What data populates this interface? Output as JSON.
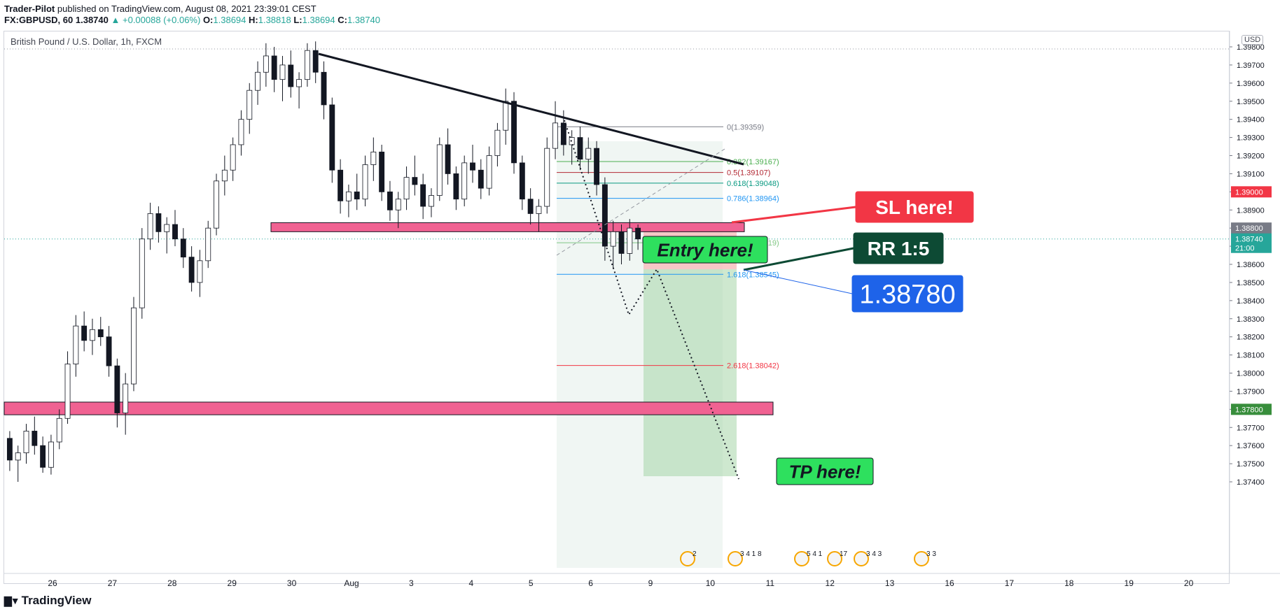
{
  "header": {
    "publisher": "Trader-Pilot",
    "published_text": "published on TradingView.com, August 08, 2021 23:39:01 CEST",
    "symbol": "FX:GBPUSD, 60",
    "last": "1.38740",
    "change": "+0.00088 (+0.06%)",
    "open_label": "O:",
    "open": "1.38694",
    "high_label": "H:",
    "high": "1.38818",
    "low_label": "L:",
    "low": "1.38694",
    "close_label": "C:",
    "close": "1.38740"
  },
  "symbol_label": "British Pound / U.S. Dollar, 1h, FXCM",
  "currency_label": "USD",
  "branding": "TradingView",
  "chart_data": {
    "type": "candlestick",
    "price_axis": {
      "range": [
        1.3736,
        1.3995
      ],
      "ticks": [
        "1.39800",
        "1.39700",
        "1.39600",
        "1.39500",
        "1.39400",
        "1.39300",
        "1.39200",
        "1.39100",
        "1.39000",
        "1.38900",
        "1.38800",
        "1.38700",
        "1.38600",
        "1.38500",
        "1.38400",
        "1.38300",
        "1.38200",
        "1.38100",
        "1.38000",
        "1.37900",
        "1.37800",
        "1.37700",
        "1.37600",
        "1.37500",
        "1.37400"
      ],
      "tick_values": [
        1.398,
        1.397,
        1.396,
        1.395,
        1.394,
        1.393,
        1.392,
        1.391,
        1.39,
        1.389,
        1.388,
        1.387,
        1.386,
        1.385,
        1.384,
        1.383,
        1.382,
        1.381,
        1.38,
        1.379,
        1.378,
        1.377,
        1.376,
        1.375,
        1.374
      ]
    },
    "time_axis": {
      "labels": [
        "26",
        "27",
        "28",
        "29",
        "30",
        "Aug",
        "3",
        "4",
        "5",
        "6",
        "9",
        "10",
        "11",
        "12",
        "13",
        "16",
        "17",
        "18",
        "19",
        "20"
      ]
    },
    "candles": [
      [
        1.3764,
        1.3768,
        1.3746,
        1.3752
      ],
      [
        1.3752,
        1.376,
        1.374,
        1.3756
      ],
      [
        1.3756,
        1.3772,
        1.375,
        1.3768
      ],
      [
        1.3768,
        1.3776,
        1.3755,
        1.376
      ],
      [
        1.376,
        1.3765,
        1.3745,
        1.3748
      ],
      [
        1.3748,
        1.3766,
        1.3744,
        1.3762
      ],
      [
        1.3762,
        1.378,
        1.3758,
        1.3775
      ],
      [
        1.3775,
        1.3812,
        1.3772,
        1.3805
      ],
      [
        1.3805,
        1.3832,
        1.3798,
        1.3826
      ],
      [
        1.3826,
        1.3834,
        1.3812,
        1.3818
      ],
      [
        1.3818,
        1.383,
        1.381,
        1.3824
      ],
      [
        1.3824,
        1.3831,
        1.3815,
        1.382
      ],
      [
        1.382,
        1.3826,
        1.3798,
        1.3804
      ],
      [
        1.3804,
        1.3808,
        1.377,
        1.3778
      ],
      [
        1.3778,
        1.38,
        1.3766,
        1.3794
      ],
      [
        1.3794,
        1.3842,
        1.379,
        1.3836
      ],
      [
        1.3836,
        1.388,
        1.383,
        1.3874
      ],
      [
        1.3874,
        1.3894,
        1.3868,
        1.3888
      ],
      [
        1.3888,
        1.3892,
        1.3872,
        1.3878
      ],
      [
        1.3878,
        1.3886,
        1.3866,
        1.3882
      ],
      [
        1.3882,
        1.389,
        1.387,
        1.3874
      ],
      [
        1.3874,
        1.388,
        1.3858,
        1.3864
      ],
      [
        1.3864,
        1.387,
        1.3845,
        1.385
      ],
      [
        1.385,
        1.3868,
        1.3842,
        1.3862
      ],
      [
        1.3862,
        1.3884,
        1.3858,
        1.388
      ],
      [
        1.388,
        1.391,
        1.3876,
        1.3906
      ],
      [
        1.3906,
        1.392,
        1.3898,
        1.3912
      ],
      [
        1.3912,
        1.393,
        1.3906,
        1.3926
      ],
      [
        1.3926,
        1.3945,
        1.392,
        1.394
      ],
      [
        1.394,
        1.396,
        1.3932,
        1.3956
      ],
      [
        1.3956,
        1.3972,
        1.3948,
        1.3966
      ],
      [
        1.3966,
        1.3982,
        1.3958,
        1.3975
      ],
      [
        1.3975,
        1.398,
        1.3955,
        1.3962
      ],
      [
        1.3962,
        1.3975,
        1.395,
        1.397
      ],
      [
        1.397,
        1.3978,
        1.3952,
        1.3958
      ],
      [
        1.3958,
        1.3966,
        1.3946,
        1.3962
      ],
      [
        1.3962,
        1.3982,
        1.3958,
        1.3978
      ],
      [
        1.3978,
        1.3983,
        1.396,
        1.3966
      ],
      [
        1.3966,
        1.3972,
        1.394,
        1.3948
      ],
      [
        1.3948,
        1.3952,
        1.3905,
        1.3912
      ],
      [
        1.3912,
        1.3918,
        1.3888,
        1.3895
      ],
      [
        1.3895,
        1.3904,
        1.3886,
        1.39
      ],
      [
        1.39,
        1.391,
        1.389,
        1.3896
      ],
      [
        1.3896,
        1.392,
        1.3892,
        1.3915
      ],
      [
        1.3915,
        1.393,
        1.3906,
        1.3922
      ],
      [
        1.3922,
        1.3926,
        1.3895,
        1.39
      ],
      [
        1.39,
        1.3906,
        1.3884,
        1.389
      ],
      [
        1.389,
        1.39,
        1.388,
        1.3896
      ],
      [
        1.3896,
        1.3914,
        1.389,
        1.3908
      ],
      [
        1.3908,
        1.392,
        1.3898,
        1.3904
      ],
      [
        1.3904,
        1.391,
        1.3885,
        1.3892
      ],
      [
        1.3892,
        1.3902,
        1.3886,
        1.3898
      ],
      [
        1.3898,
        1.393,
        1.3895,
        1.3926
      ],
      [
        1.3926,
        1.3935,
        1.3904,
        1.391
      ],
      [
        1.391,
        1.3914,
        1.389,
        1.3896
      ],
      [
        1.3896,
        1.392,
        1.3892,
        1.3916
      ],
      [
        1.3916,
        1.3926,
        1.3905,
        1.3912
      ],
      [
        1.3912,
        1.3918,
        1.3896,
        1.3902
      ],
      [
        1.3902,
        1.3925,
        1.3898,
        1.392
      ],
      [
        1.392,
        1.3938,
        1.3914,
        1.3934
      ],
      [
        1.3934,
        1.3957,
        1.3926,
        1.395
      ],
      [
        1.395,
        1.3955,
        1.391,
        1.3916
      ],
      [
        1.3916,
        1.392,
        1.389,
        1.3896
      ],
      [
        1.3896,
        1.3902,
        1.3882,
        1.3888
      ],
      [
        1.3888,
        1.3896,
        1.3878,
        1.3892
      ],
      [
        1.3892,
        1.393,
        1.3888,
        1.3924
      ],
      [
        1.3924,
        1.395,
        1.3918,
        1.3938
      ],
      [
        1.3938,
        1.3945,
        1.392,
        1.3926
      ],
      [
        1.3926,
        1.3934,
        1.3915,
        1.393
      ],
      [
        1.393,
        1.3936,
        1.3912,
        1.3918
      ],
      [
        1.3918,
        1.393,
        1.391,
        1.3924
      ],
      [
        1.3924,
        1.3928,
        1.3898,
        1.3904
      ],
      [
        1.3904,
        1.3908,
        1.3862,
        1.387
      ],
      [
        1.387,
        1.3884,
        1.3858,
        1.3878
      ],
      [
        1.3878,
        1.3882,
        1.386,
        1.3866
      ],
      [
        1.3866,
        1.3885,
        1.3862,
        1.388
      ],
      [
        1.388,
        1.3882,
        1.3868,
        1.3874
      ]
    ],
    "levels": [
      {
        "label": "1.39000",
        "value": 1.39,
        "color": "#f23645"
      },
      {
        "label": "1.38800",
        "value": 1.388,
        "color": "#787b86"
      },
      {
        "label": "1.38740",
        "value": 1.3874,
        "color": "#26a69a",
        "countdown": "21:00"
      },
      {
        "label": "1.37800",
        "value": 1.378,
        "color": "#388e3c"
      }
    ],
    "fib_levels": [
      {
        "text": "0(1.39359)",
        "value": 1.39359,
        "color": "#787b86"
      },
      {
        "text": "0.382(1.39167)",
        "value": 1.39167,
        "color": "#4caf50"
      },
      {
        "text": "0.5(1.39107)",
        "value": 1.39107,
        "color": "#b22833"
      },
      {
        "text": "0.618(1.39048)",
        "value": 1.39048,
        "color": "#089981"
      },
      {
        "text": "0.786(1.38964)",
        "value": 1.38964,
        "color": "#2196f3"
      },
      {
        "text": "1.272(1.38719)",
        "value": 1.38719,
        "color": "#81c784"
      },
      {
        "text": "1.618(1.38545)",
        "value": 1.38545,
        "color": "#2196f3"
      },
      {
        "text": "2.618(1.38042)",
        "value": 1.38042,
        "color": "#f23645"
      }
    ],
    "zones": [
      {
        "name": "entry-zone",
        "low": 1.3878,
        "high": 1.3883,
        "color": "#f06292"
      },
      {
        "name": "tp-zone",
        "low": 1.3777,
        "high": 1.3784,
        "color": "#f06292"
      }
    ],
    "callouts": [
      {
        "name": "sl-callout",
        "text": "SL here!",
        "bg": "#f23645",
        "fg": "#ffffff"
      },
      {
        "name": "entry-callout",
        "text": "Entry here!",
        "bg": "#2ee05e",
        "fg": "#131722"
      },
      {
        "name": "rr-callout",
        "text": "RR 1:5",
        "bg": "#0d4a34",
        "fg": "#ffffff"
      },
      {
        "name": "price-callout",
        "text": "1.38780",
        "bg": "#1e63e9",
        "fg": "#ffffff"
      },
      {
        "name": "tp-callout",
        "text": "TP here!",
        "bg": "#2ee05e",
        "fg": "#131722"
      }
    ],
    "event_badges": [
      "2",
      "3 4 1 8",
      "5 4 1",
      "17",
      "3 4 3",
      "3 3"
    ]
  }
}
